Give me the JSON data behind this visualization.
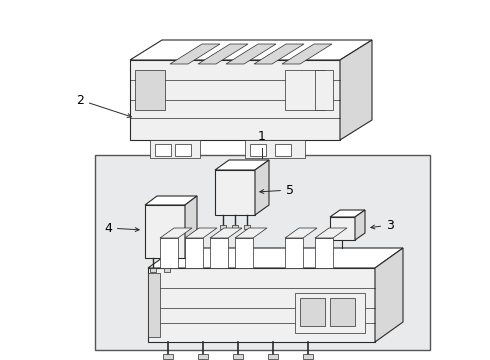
{
  "bg_color": "#ffffff",
  "box_bg": "#e8eaec",
  "line_color": "#2a2a2a",
  "lw_main": 0.8,
  "lw_thin": 0.5,
  "fill_white": "#ffffff",
  "fill_light": "#f0f0f0",
  "fill_mid": "#d8d8d8",
  "fill_dark": "#b8b8b8"
}
